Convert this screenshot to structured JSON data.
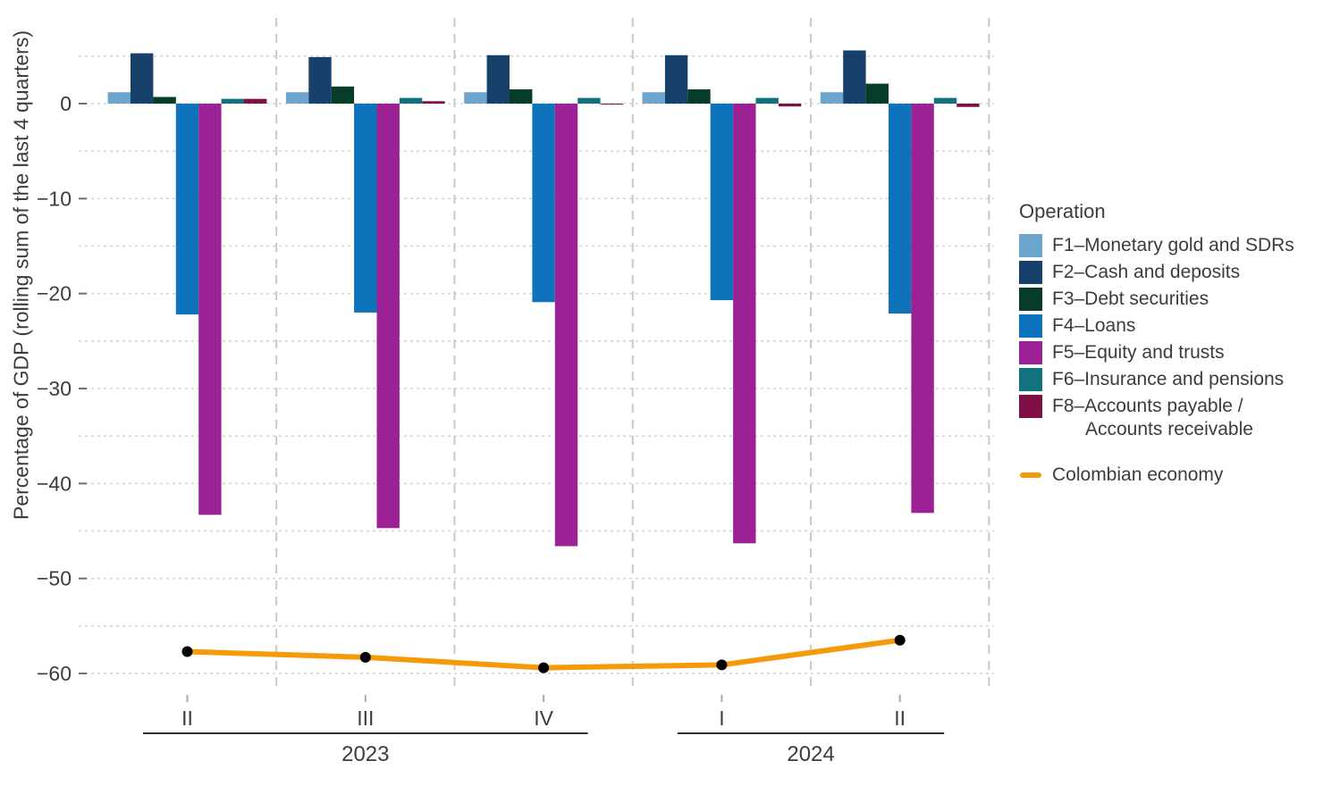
{
  "figure": {
    "background": "#ffffff",
    "text_color": "#3c3c3c"
  },
  "legend": {
    "title": "Operation",
    "items": [
      {
        "key": "F1",
        "label": "F1–Monetary gold and SDRs",
        "color": "#6CA5CE"
      },
      {
        "key": "F2",
        "label": "F2–Cash and deposits",
        "color": "#17406B"
      },
      {
        "key": "F3",
        "label": "F3–Debt securities",
        "color": "#073D28"
      },
      {
        "key": "F4",
        "label": "F4–Loans",
        "color": "#0E73BB"
      },
      {
        "key": "F5",
        "label": "F5–Equity and trusts",
        "color": "#9C2194"
      },
      {
        "key": "F6",
        "label": "F6–Insurance and pensions",
        "color": "#14717E"
      },
      {
        "key": "F8",
        "label": "F8–Accounts payable /",
        "label_line2": "Accounts receivable",
        "color": "#7E1045"
      }
    ],
    "line_item": {
      "label": "Colombian economy",
      "color": "#F59B0B"
    }
  },
  "chart_data": {
    "type": "bar",
    "title": "",
    "xlabel": "",
    "ylabel": "Percentage of GDP (rolling sum of the last 4 quarters)",
    "ylim": [
      -65,
      7
    ],
    "grid": "dashed",
    "legend_position": "right",
    "yticks": [
      0,
      -10,
      -20,
      -30,
      -40,
      -50,
      -60
    ],
    "ytick_labels": [
      "0",
      "−10",
      "−20",
      "−30",
      "−40",
      "−50",
      "−60"
    ],
    "categories": [
      "II",
      "III",
      "IV",
      "I",
      "II"
    ],
    "year_groups": [
      {
        "label": "2023",
        "from": 0,
        "to": 2
      },
      {
        "label": "2024",
        "from": 3,
        "to": 4
      }
    ],
    "series": [
      {
        "key": "F1",
        "name": "F1–Monetary gold and SDRs",
        "color": "#6CA5CE",
        "values": [
          1.2,
          1.2,
          1.2,
          1.2,
          1.2
        ]
      },
      {
        "key": "F2",
        "name": "F2–Cash and deposits",
        "color": "#17406B",
        "values": [
          5.3,
          4.9,
          5.1,
          5.1,
          5.6
        ]
      },
      {
        "key": "F3",
        "name": "F3–Debt securities",
        "color": "#073D28",
        "values": [
          0.7,
          1.8,
          1.5,
          1.5,
          2.1
        ]
      },
      {
        "key": "F4",
        "name": "F4–Loans",
        "color": "#0E73BB",
        "values": [
          -22.2,
          -22.0,
          -20.9,
          -20.7,
          -22.1
        ]
      },
      {
        "key": "F5",
        "name": "F5–Equity and trusts",
        "color": "#9C2194",
        "values": [
          -43.3,
          -44.7,
          -46.6,
          -46.3,
          -43.1
        ]
      },
      {
        "key": "F6",
        "name": "F6–Insurance and pensions",
        "color": "#14717E",
        "values": [
          0.5,
          0.6,
          0.6,
          0.6,
          0.6
        ]
      },
      {
        "key": "F8",
        "name": "F8–Accounts payable / Accounts receivable",
        "color": "#7E1045",
        "values": [
          0.5,
          0.25,
          -0.1,
          -0.3,
          -0.35
        ]
      }
    ],
    "line_series": {
      "name": "Colombian economy",
      "color": "#F59B0B",
      "marker_color": "#000000",
      "values": [
        -57.7,
        -58.3,
        -59.4,
        -59.1,
        -56.5
      ]
    }
  }
}
